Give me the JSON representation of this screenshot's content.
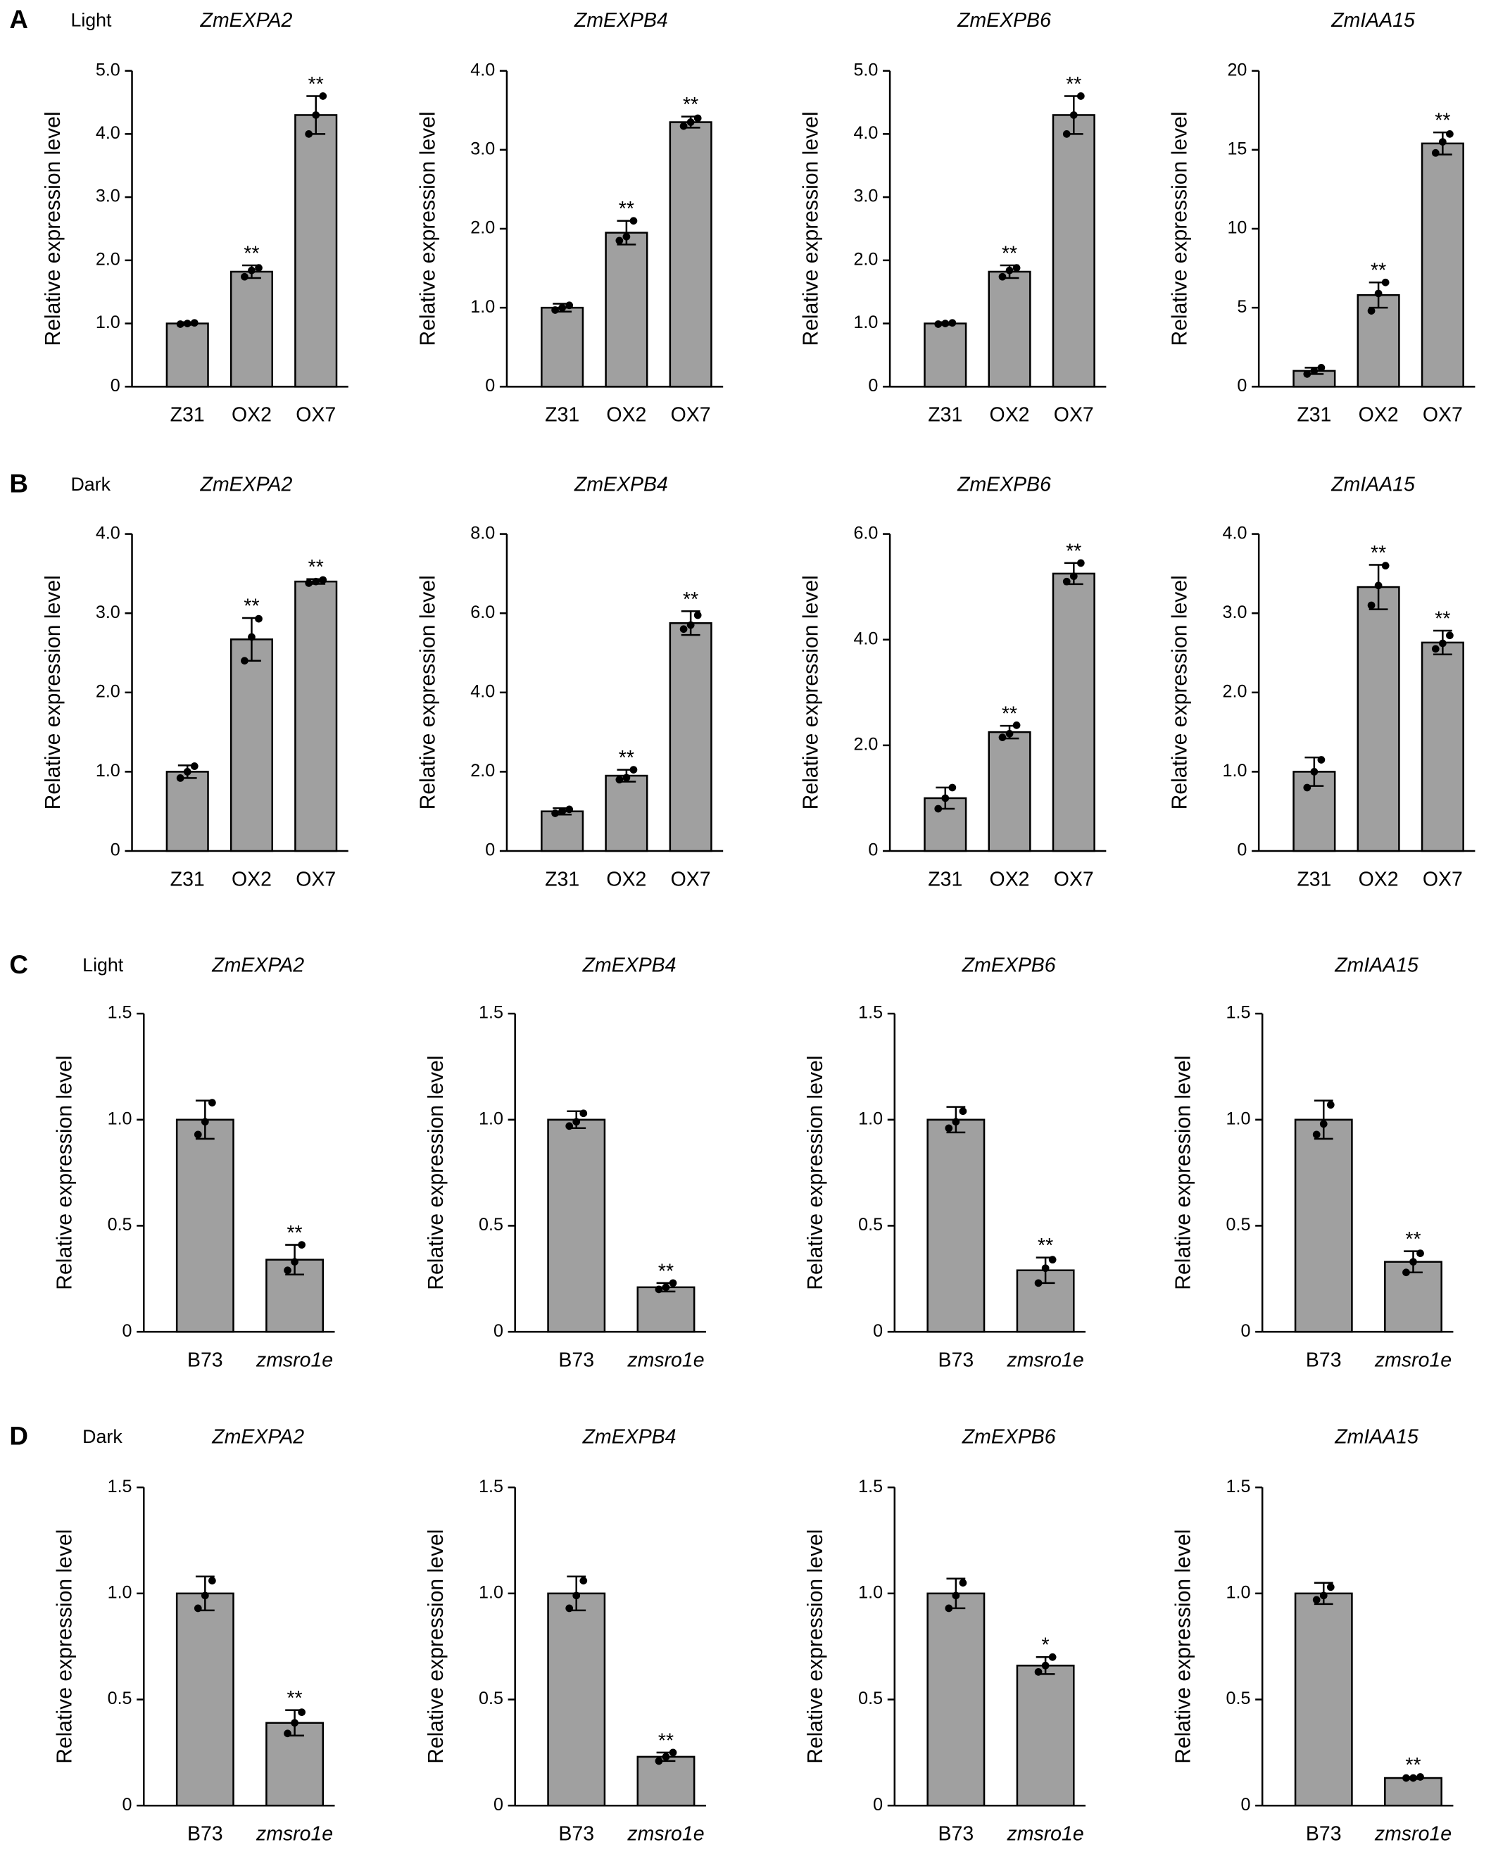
{
  "chart_data": [
    {
      "type": "bar",
      "panel": "A",
      "condition": "Light",
      "title": "ZmEXPA2",
      "ylabel": "Relative expression level",
      "categories": [
        "Z31",
        "OX2",
        "OX7"
      ],
      "values": [
        1.0,
        1.82,
        4.3
      ],
      "errors": [
        0.02,
        0.1,
        0.3
      ],
      "points": [
        [
          0.99,
          1.0,
          1.01
        ],
        [
          1.74,
          1.84,
          1.88
        ],
        [
          4.0,
          4.3,
          4.6
        ]
      ],
      "significance": [
        null,
        "**",
        "**"
      ],
      "ylim": [
        0,
        5
      ],
      "yticks": [
        0,
        {
          "value": 1,
          "label": "1.0"
        },
        {
          "value": 2,
          "label": "2.0"
        },
        {
          "value": 3,
          "label": "3.0"
        },
        {
          "value": 4,
          "label": "4.0"
        },
        {
          "value": 5,
          "label": "5.0"
        }
      ],
      "color": "#a0a0a0"
    },
    {
      "type": "bar",
      "title": "ZmEXPB4",
      "ylabel": "Relative expression level",
      "categories": [
        "Z31",
        "OX2",
        "OX7"
      ],
      "values": [
        1.0,
        1.95,
        3.35
      ],
      "errors": [
        0.05,
        0.15,
        0.07
      ],
      "points": [
        [
          0.97,
          1.0,
          1.03
        ],
        [
          1.85,
          1.9,
          2.1
        ],
        [
          3.3,
          3.35,
          3.4
        ]
      ],
      "significance": [
        null,
        "**",
        "**"
      ],
      "ylim": [
        0,
        4
      ],
      "yticks": [
        0,
        {
          "value": 1,
          "label": "1.0"
        },
        {
          "value": 2,
          "label": "2.0"
        },
        {
          "value": 3,
          "label": "3.0"
        },
        {
          "value": 4,
          "label": "4.0"
        }
      ],
      "color": "#a0a0a0"
    },
    {
      "type": "bar",
      "title": "ZmEXPB6",
      "ylabel": "Relative expression level",
      "categories": [
        "Z31",
        "OX2",
        "OX7"
      ],
      "values": [
        1.0,
        1.82,
        4.3
      ],
      "errors": [
        0.02,
        0.1,
        0.3
      ],
      "points": [
        [
          0.99,
          1.0,
          1.01
        ],
        [
          1.74,
          1.84,
          1.88
        ],
        [
          4.0,
          4.3,
          4.6
        ]
      ],
      "significance": [
        null,
        "**",
        "**"
      ],
      "ylim": [
        0,
        5
      ],
      "yticks": [
        0,
        {
          "value": 1,
          "label": "1.0"
        },
        {
          "value": 2,
          "label": "2.0"
        },
        {
          "value": 3,
          "label": "3.0"
        },
        {
          "value": 4,
          "label": "4.0"
        },
        {
          "value": 5,
          "label": "5.0"
        }
      ],
      "color": "#a0a0a0"
    },
    {
      "type": "bar",
      "title": "ZmIAA15",
      "ylabel": "Relative expression level",
      "categories": [
        "Z31",
        "OX2",
        "OX7"
      ],
      "values": [
        1.0,
        5.8,
        15.4
      ],
      "errors": [
        0.2,
        0.8,
        0.7
      ],
      "points": [
        [
          0.8,
          1.0,
          1.2
        ],
        [
          4.8,
          5.9,
          6.6
        ],
        [
          14.8,
          15.5,
          16.0
        ]
      ],
      "significance": [
        null,
        "**",
        "**"
      ],
      "ylim": [
        0,
        20
      ],
      "yticks": [
        0,
        5,
        10,
        15,
        20
      ],
      "color": "#a0a0a0"
    },
    {
      "type": "bar",
      "panel": "B",
      "condition": "Dark",
      "title": "ZmEXPA2",
      "ylabel": "Relative expression level",
      "categories": [
        "Z31",
        "OX2",
        "OX7"
      ],
      "values": [
        1.0,
        2.67,
        3.4
      ],
      "errors": [
        0.08,
        0.27,
        0.03
      ],
      "points": [
        [
          0.92,
          1.0,
          1.07
        ],
        [
          2.4,
          2.7,
          2.93
        ],
        [
          3.38,
          3.4,
          3.42
        ]
      ],
      "significance": [
        null,
        "**",
        "**"
      ],
      "ylim": [
        0,
        4
      ],
      "yticks": [
        0,
        {
          "value": 1,
          "label": "1.0"
        },
        {
          "value": 2,
          "label": "2.0"
        },
        {
          "value": 3,
          "label": "3.0"
        },
        {
          "value": 4,
          "label": "4.0"
        }
      ],
      "color": "#a0a0a0"
    },
    {
      "type": "bar",
      "title": "ZmEXPB4",
      "ylabel": "Relative expression level",
      "categories": [
        "Z31",
        "OX2",
        "OX7"
      ],
      "values": [
        1.0,
        1.9,
        5.75
      ],
      "errors": [
        0.08,
        0.15,
        0.3
      ],
      "points": [
        [
          0.95,
          1.0,
          1.05
        ],
        [
          1.8,
          1.85,
          2.05
        ],
        [
          5.6,
          5.7,
          5.95
        ]
      ],
      "significance": [
        null,
        "**",
        "**"
      ],
      "ylim": [
        0,
        8
      ],
      "yticks": [
        0,
        {
          "value": 2,
          "label": "2.0"
        },
        {
          "value": 4,
          "label": "4.0"
        },
        {
          "value": 6,
          "label": "6.0"
        },
        {
          "value": 8,
          "label": "8.0"
        }
      ],
      "color": "#a0a0a0"
    },
    {
      "type": "bar",
      "title": "ZmEXPB6",
      "ylabel": "Relative expression level",
      "categories": [
        "Z31",
        "OX2",
        "OX7"
      ],
      "values": [
        1.0,
        2.25,
        5.25
      ],
      "errors": [
        0.2,
        0.12,
        0.2
      ],
      "points": [
        [
          0.8,
          1.0,
          1.2
        ],
        [
          2.15,
          2.22,
          2.38
        ],
        [
          5.1,
          5.2,
          5.45
        ]
      ],
      "significance": [
        null,
        "**",
        "**"
      ],
      "ylim": [
        0,
        6
      ],
      "yticks": [
        0,
        {
          "value": 2,
          "label": "2.0"
        },
        {
          "value": 4,
          "label": "4.0"
        },
        {
          "value": 6,
          "label": "6.0"
        }
      ],
      "color": "#a0a0a0"
    },
    {
      "type": "bar",
      "title": "ZmIAA15",
      "ylabel": "Relative expression level",
      "categories": [
        "Z31",
        "OX2",
        "OX7"
      ],
      "values": [
        1.0,
        3.33,
        2.63
      ],
      "errors": [
        0.18,
        0.28,
        0.15
      ],
      "points": [
        [
          0.8,
          1.0,
          1.15
        ],
        [
          3.1,
          3.35,
          3.6
        ],
        [
          2.55,
          2.62,
          2.72
        ]
      ],
      "significance": [
        null,
        "**",
        "**"
      ],
      "ylim": [
        0,
        4
      ],
      "yticks": [
        0,
        {
          "value": 1,
          "label": "1.0"
        },
        {
          "value": 2,
          "label": "2.0"
        },
        {
          "value": 3,
          "label": "3.0"
        },
        {
          "value": 4,
          "label": "4.0"
        }
      ],
      "color": "#a0a0a0"
    },
    {
      "type": "bar",
      "panel": "C",
      "condition": "Light",
      "title": "ZmEXPA2",
      "ylabel": "Relative expression level",
      "categories": [
        "B73",
        "zmsro1e"
      ],
      "values": [
        1.0,
        0.34
      ],
      "errors": [
        0.09,
        0.07
      ],
      "points": [
        [
          0.93,
          0.99,
          1.08
        ],
        [
          0.29,
          0.33,
          0.41
        ]
      ],
      "significance": [
        null,
        "**"
      ],
      "ylim": [
        0,
        1.5
      ],
      "yticks": [
        0,
        0.5,
        {
          "value": 1,
          "label": "1.0"
        },
        1.5
      ],
      "color": "#a0a0a0"
    },
    {
      "type": "bar",
      "title": "ZmEXPB4",
      "ylabel": "Relative expression level",
      "categories": [
        "B73",
        "zmsro1e"
      ],
      "values": [
        1.0,
        0.21
      ],
      "errors": [
        0.04,
        0.02
      ],
      "points": [
        [
          0.97,
          0.99,
          1.03
        ],
        [
          0.2,
          0.21,
          0.23
        ]
      ],
      "significance": [
        null,
        "**"
      ],
      "ylim": [
        0,
        1.5
      ],
      "yticks": [
        0,
        0.5,
        {
          "value": 1,
          "label": "1.0"
        },
        1.5
      ],
      "color": "#a0a0a0"
    },
    {
      "type": "bar",
      "title": "ZmEXPB6",
      "ylabel": "Relative expression level",
      "categories": [
        "B73",
        "zmsro1e"
      ],
      "values": [
        1.0,
        0.29
      ],
      "errors": [
        0.06,
        0.06
      ],
      "points": [
        [
          0.96,
          0.99,
          1.04
        ],
        [
          0.23,
          0.3,
          0.34
        ]
      ],
      "significance": [
        null,
        "**"
      ],
      "ylim": [
        0,
        1.5
      ],
      "yticks": [
        0,
        0.5,
        {
          "value": 1,
          "label": "1.0"
        },
        1.5
      ],
      "color": "#a0a0a0"
    },
    {
      "type": "bar",
      "title": "ZmIAA15",
      "ylabel": "Relative expression level",
      "categories": [
        "B73",
        "zmsro1e"
      ],
      "values": [
        1.0,
        0.33
      ],
      "errors": [
        0.09,
        0.05
      ],
      "points": [
        [
          0.93,
          0.98,
          1.07
        ],
        [
          0.28,
          0.33,
          0.37
        ]
      ],
      "significance": [
        null,
        "**"
      ],
      "ylim": [
        0,
        1.5
      ],
      "yticks": [
        0,
        0.5,
        {
          "value": 1,
          "label": "1.0"
        },
        1.5
      ],
      "color": "#a0a0a0"
    },
    {
      "type": "bar",
      "panel": "D",
      "condition": "Dark",
      "title": "ZmEXPA2",
      "ylabel": "Relative expression level",
      "categories": [
        "B73",
        "zmsro1e"
      ],
      "values": [
        1.0,
        0.39
      ],
      "errors": [
        0.08,
        0.06
      ],
      "points": [
        [
          0.93,
          0.99,
          1.06
        ],
        [
          0.34,
          0.39,
          0.44
        ]
      ],
      "significance": [
        null,
        "**"
      ],
      "ylim": [
        0,
        1.5
      ],
      "yticks": [
        0,
        0.5,
        {
          "value": 1,
          "label": "1.0"
        },
        1.5
      ],
      "color": "#a0a0a0"
    },
    {
      "type": "bar",
      "title": "ZmEXPB4",
      "ylabel": "Relative expression level",
      "categories": [
        "B73",
        "zmsro1e"
      ],
      "values": [
        1.0,
        0.23
      ],
      "errors": [
        0.08,
        0.02
      ],
      "points": [
        [
          0.93,
          0.99,
          1.06
        ],
        [
          0.21,
          0.23,
          0.25
        ]
      ],
      "significance": [
        null,
        "**"
      ],
      "ylim": [
        0,
        1.5
      ],
      "yticks": [
        0,
        0.5,
        {
          "value": 1,
          "label": "1.0"
        },
        1.5
      ],
      "color": "#a0a0a0"
    },
    {
      "type": "bar",
      "title": "ZmEXPB6",
      "ylabel": "Relative expression level",
      "categories": [
        "B73",
        "zmsro1e"
      ],
      "values": [
        1.0,
        0.66
      ],
      "errors": [
        0.07,
        0.04
      ],
      "points": [
        [
          0.93,
          0.99,
          1.05
        ],
        [
          0.63,
          0.66,
          0.7
        ]
      ],
      "significance": [
        null,
        "*"
      ],
      "ylim": [
        0,
        1.5
      ],
      "yticks": [
        0,
        0.5,
        {
          "value": 1,
          "label": "1.0"
        },
        1.5
      ],
      "color": "#a0a0a0"
    },
    {
      "type": "bar",
      "title": "ZmIAA15",
      "ylabel": "Relative expression level",
      "categories": [
        "B73",
        "zmsro1e"
      ],
      "values": [
        1.0,
        0.13
      ],
      "errors": [
        0.05,
        0.005
      ],
      "points": [
        [
          0.97,
          0.99,
          1.03
        ],
        [
          0.13,
          0.13,
          0.135
        ]
      ],
      "significance": [
        null,
        "**"
      ],
      "ylim": [
        0,
        1.5
      ],
      "yticks": [
        0,
        0.5,
        {
          "value": 1,
          "label": "1.0"
        },
        1.5
      ],
      "color": "#a0a0a0"
    }
  ]
}
